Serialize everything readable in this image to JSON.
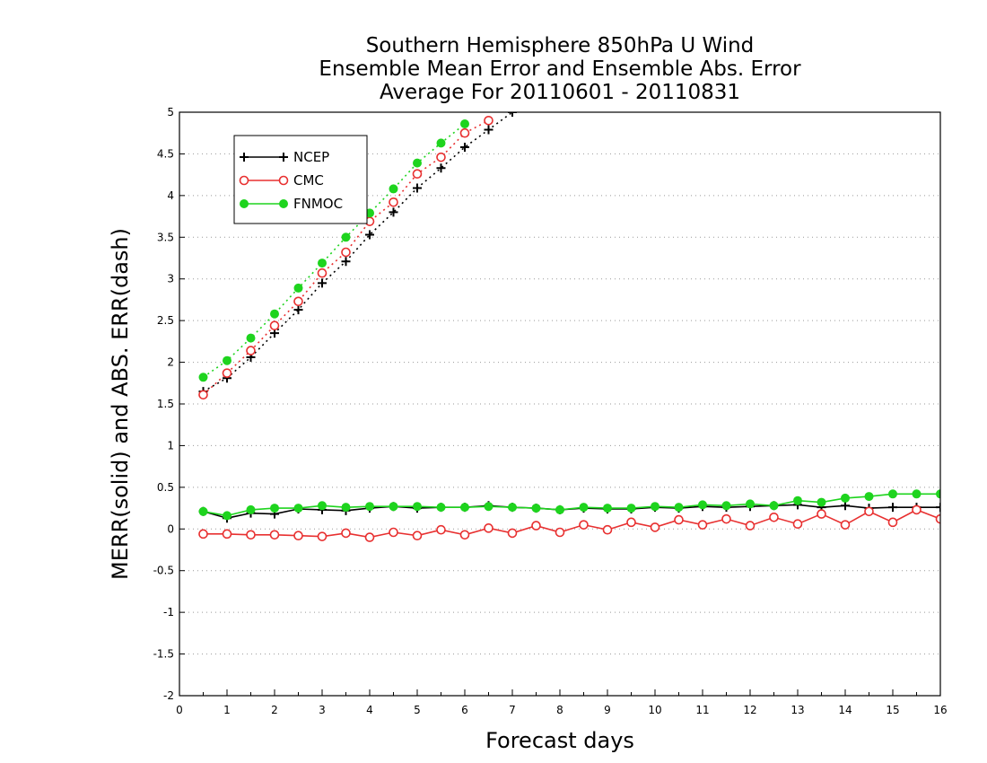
{
  "chart_data": {
    "type": "line",
    "title_lines": [
      "Southern Hemisphere 850hPa U Wind",
      "Ensemble Mean Error and Ensemble Abs. Error",
      "Average For 20110601 - 20110831"
    ],
    "xlabel": "Forecast days",
    "ylabel": "MERR(solid) and ABS. ERR(dash)",
    "xlim": [
      0,
      16
    ],
    "ylim": [
      -2,
      5
    ],
    "x_ticks": [
      "0",
      "1",
      "2",
      "3",
      "4",
      "5",
      "6",
      "7",
      "8",
      "9",
      "10",
      "11",
      "12",
      "13",
      "14",
      "15",
      "16"
    ],
    "y_ticks": [
      "-2",
      "-1.5",
      "-1",
      "-0.5",
      "0",
      "0.5",
      "1",
      "1.5",
      "2",
      "2.5",
      "3",
      "3.5",
      "4",
      "4.5",
      "5"
    ],
    "y_tick_values": [
      -2,
      -1.5,
      -1,
      -0.5,
      0,
      0.5,
      1,
      1.5,
      2,
      2.5,
      3,
      3.5,
      4,
      4.5,
      5
    ],
    "grid": true,
    "legend_position": "top-left",
    "x": [
      0.5,
      1,
      1.5,
      2,
      2.5,
      3,
      3.5,
      4,
      4.5,
      5,
      5.5,
      6,
      6.5,
      7,
      7.5,
      8,
      8.5,
      9,
      9.5,
      10,
      10.5,
      11,
      11.5,
      12,
      12.5,
      13,
      13.5,
      14,
      14.5,
      15,
      15.5,
      16
    ],
    "series": [
      {
        "name": "NCEP",
        "color": "#000000",
        "marker": "plus",
        "merr": [
          0.21,
          0.13,
          0.19,
          0.18,
          0.24,
          0.23,
          0.22,
          0.25,
          0.27,
          0.25,
          0.26,
          0.26,
          0.28,
          0.26,
          0.25,
          0.23,
          0.25,
          0.24,
          0.24,
          0.26,
          0.25,
          0.27,
          0.26,
          0.27,
          0.28,
          0.29,
          0.26,
          0.28,
          0.25,
          0.26,
          0.26,
          0.26
        ],
        "abs_err": [
          1.65,
          1.81,
          2.06,
          2.35,
          2.63,
          2.95,
          3.21,
          3.53,
          3.8,
          4.09,
          4.33,
          4.58,
          4.79,
          5.0
        ]
      },
      {
        "name": "CMC",
        "color": "#e83030",
        "marker": "open-circle",
        "merr": [
          -0.06,
          -0.06,
          -0.07,
          -0.07,
          -0.08,
          -0.09,
          -0.05,
          -0.1,
          -0.04,
          -0.08,
          -0.01,
          -0.07,
          0.01,
          -0.05,
          0.04,
          -0.04,
          0.05,
          -0.01,
          0.08,
          0.02,
          0.11,
          0.05,
          0.12,
          0.04,
          0.14,
          0.06,
          0.18,
          0.05,
          0.21,
          0.08,
          0.23,
          0.12
        ],
        "abs_err": [
          1.61,
          1.87,
          2.14,
          2.44,
          2.73,
          3.07,
          3.32,
          3.69,
          3.92,
          4.26,
          4.46,
          4.75,
          4.9
        ]
      },
      {
        "name": "FNMOC",
        "color": "#1ed41e",
        "marker": "filled-circle",
        "merr": [
          0.21,
          0.16,
          0.23,
          0.25,
          0.25,
          0.28,
          0.26,
          0.27,
          0.27,
          0.27,
          0.26,
          0.26,
          0.27,
          0.26,
          0.25,
          0.23,
          0.26,
          0.25,
          0.25,
          0.27,
          0.26,
          0.29,
          0.28,
          0.3,
          0.28,
          0.34,
          0.32,
          0.37,
          0.39,
          0.42,
          0.42,
          0.42
        ],
        "abs_err": [
          1.82,
          2.02,
          2.29,
          2.58,
          2.89,
          3.19,
          3.5,
          3.79,
          4.08,
          4.39,
          4.63,
          4.86
        ]
      }
    ]
  }
}
